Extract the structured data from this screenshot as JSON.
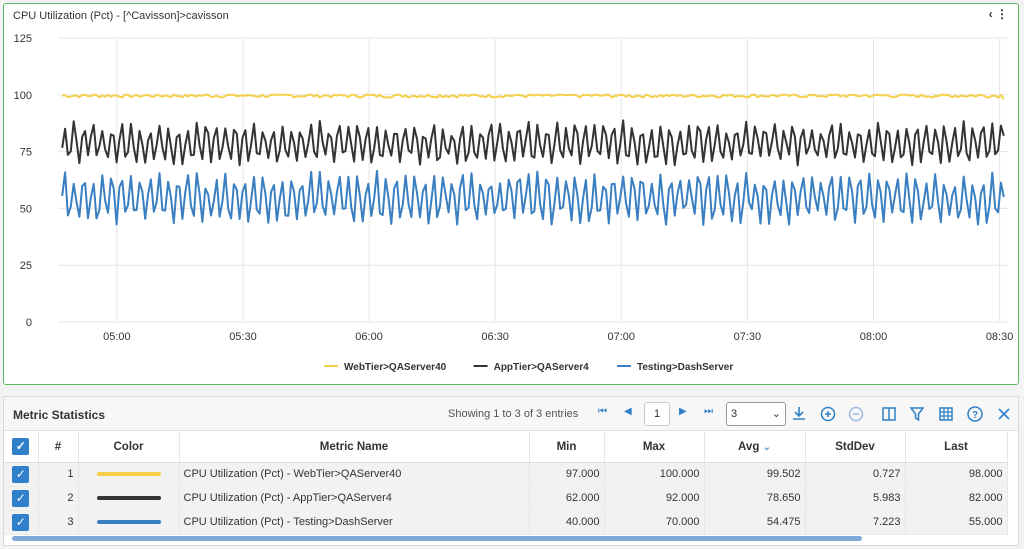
{
  "chart": {
    "title": "CPU Utilization (Pct) - [^Cavisson]>cavisson",
    "menu_label": "‹ ⋮"
  },
  "chart_data": {
    "type": "line",
    "x_ticks": [
      "05:00",
      "05:30",
      "06:00",
      "06:30",
      "07:00",
      "07:30",
      "08:00",
      "08:30"
    ],
    "y_ticks": [
      0,
      25,
      50,
      75,
      100,
      125
    ],
    "ylim": [
      0,
      125
    ],
    "xlim_minutes": [
      "04:46",
      "08:32"
    ],
    "grid": true,
    "legend_position": "bottom",
    "series": [
      {
        "name": "WebTier>QAServer40",
        "color": "#f5d04a",
        "min": 97.0,
        "max": 100.0,
        "avg": 99.502,
        "std": 0.727,
        "last": 98.0
      },
      {
        "name": "AppTier>QAServer4",
        "color": "#333333",
        "min": 62.0,
        "max": 92.0,
        "avg": 78.65,
        "std": 5.983,
        "last": 82.0
      },
      {
        "name": "Testing>DashServer",
        "color": "#3a7fc1",
        "min": 40.0,
        "max": 70.0,
        "avg": 54.475,
        "std": 7.223,
        "last": 55.0
      }
    ]
  },
  "stats": {
    "title": "Metric Statistics",
    "entries_text": "Showing 1 to 3 of 3 entries",
    "page": "1",
    "rows_per_page": "3",
    "columns": {
      "index": "#",
      "color": "Color",
      "name": "Metric Name",
      "min": "Min",
      "max": "Max",
      "avg": "Avg",
      "std": "StdDev",
      "last": "Last"
    },
    "rows": [
      {
        "index": "1",
        "color": "#f5d04a",
        "name": "CPU Utilization (Pct) - WebTier>QAServer40",
        "min": "97.000",
        "max": "100.000",
        "avg": "99.502",
        "std": "0.727",
        "last": "98.000"
      },
      {
        "index": "2",
        "color": "#333333",
        "name": "CPU Utilization (Pct) - AppTier>QAServer4",
        "min": "62.000",
        "max": "92.000",
        "avg": "78.650",
        "std": "5.983",
        "last": "82.000"
      },
      {
        "index": "3",
        "color": "#3a7fc1",
        "name": "CPU Utilization (Pct) - Testing>DashServer",
        "min": "40.000",
        "max": "70.000",
        "avg": "54.475",
        "std": "7.223",
        "last": "55.000"
      }
    ]
  }
}
